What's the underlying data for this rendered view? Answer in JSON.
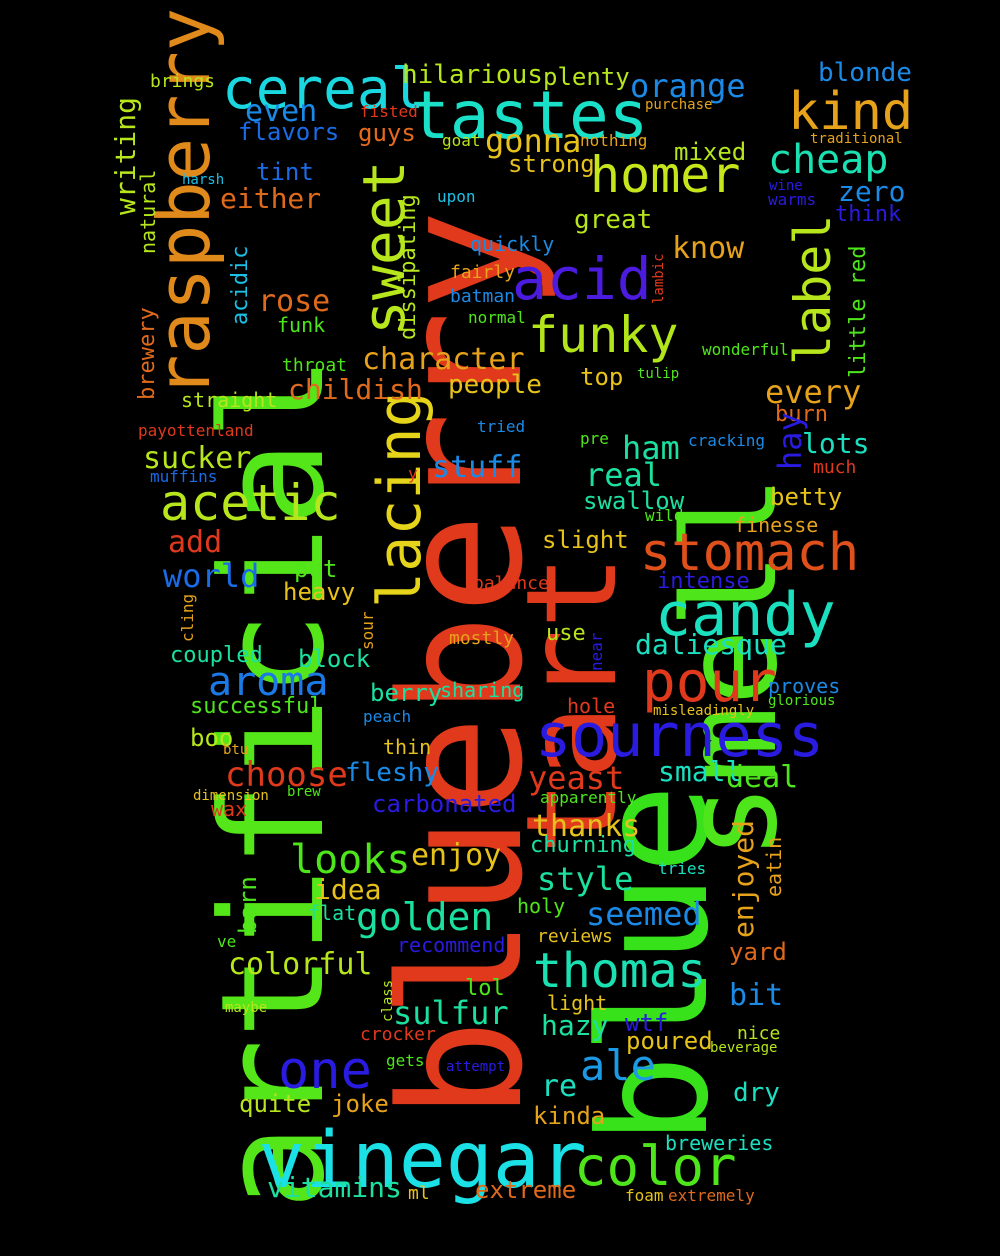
{
  "words": [
    {
      "text": "blueberry",
      "color": "#e0391c"
    },
    {
      "text": "artificial",
      "color": "#55e619"
    },
    {
      "text": "blue",
      "color": "#37e21b"
    },
    {
      "text": "smell",
      "color": "#4ee61b"
    },
    {
      "text": "tart",
      "color": "#e0391c"
    },
    {
      "text": "vinegar",
      "color": "#1be0e6"
    },
    {
      "text": "tastes",
      "color": "#1be0c8"
    },
    {
      "text": "cereal",
      "color": "#1bd8e0"
    },
    {
      "text": "raspberry",
      "color": "#e08a1b"
    },
    {
      "text": "lacing",
      "color": "#e6d41b"
    },
    {
      "text": "sweet",
      "color": "#b6e61b"
    },
    {
      "text": "acid",
      "color": "#4b1be0"
    },
    {
      "text": "sourness",
      "color": "#2a1be0"
    },
    {
      "text": "candy",
      "color": "#1be0c0"
    },
    {
      "text": "stomach",
      "color": "#e0501b"
    },
    {
      "text": "pour",
      "color": "#e0391c"
    },
    {
      "text": "funky",
      "color": "#b2e61b"
    },
    {
      "text": "homer",
      "color": "#c6e61b"
    },
    {
      "text": "kind",
      "color": "#e6a21b"
    },
    {
      "text": "label",
      "color": "#b6e61b"
    },
    {
      "text": "cheap",
      "color": "#1be0b2"
    },
    {
      "text": "acetic",
      "color": "#b6e61b"
    },
    {
      "text": "thomas",
      "color": "#1be0b2"
    },
    {
      "text": "color",
      "color": "#4ee61b"
    },
    {
      "text": "one",
      "color": "#2a1be0"
    },
    {
      "text": "aroma",
      "color": "#1b7ae6"
    },
    {
      "text": "ale",
      "color": "#1b9ae6"
    },
    {
      "text": "golden",
      "color": "#1be0a0"
    },
    {
      "text": "looks",
      "color": "#4ee61b"
    },
    {
      "text": "orange",
      "color": "#1b8ae6"
    },
    {
      "text": "blonde",
      "color": "#1b8ae6"
    },
    {
      "text": "hilarious",
      "color": "#b6e61b"
    },
    {
      "text": "plenty",
      "color": "#b6e61b"
    },
    {
      "text": "even",
      "color": "#1b8ae6"
    },
    {
      "text": "flavors",
      "color": "#1b6ae6"
    },
    {
      "text": "fisted",
      "color": "#e0391c"
    },
    {
      "text": "guys",
      "color": "#e66a1b"
    },
    {
      "text": "gonna",
      "color": "#e6c21b"
    },
    {
      "text": "nothing",
      "color": "#e6a21b"
    },
    {
      "text": "purchase",
      "color": "#e6a21b"
    },
    {
      "text": "traditional",
      "color": "#e6a21b"
    },
    {
      "text": "brings",
      "color": "#b6e61b"
    },
    {
      "text": "writing",
      "color": "#b6e61b"
    },
    {
      "text": "natural",
      "color": "#b6e61b"
    },
    {
      "text": "tint",
      "color": "#1b6ae6"
    },
    {
      "text": "harsh",
      "color": "#1bc0e6"
    },
    {
      "text": "either",
      "color": "#e06a1b"
    },
    {
      "text": "goat",
      "color": "#b6e61b"
    },
    {
      "text": "strong",
      "color": "#e6c21b"
    },
    {
      "text": "mixed",
      "color": "#b6e61b"
    },
    {
      "text": "upon",
      "color": "#1bc0e6"
    },
    {
      "text": "great",
      "color": "#b6e61b"
    },
    {
      "text": "know",
      "color": "#e6a21b"
    },
    {
      "text": "zero",
      "color": "#1b8ae6"
    },
    {
      "text": "wine",
      "color": "#2a1be0"
    },
    {
      "text": "warms",
      "color": "#2a1be0"
    },
    {
      "text": "think",
      "color": "#2a1be0"
    },
    {
      "text": "little red",
      "color": "#4ee61b"
    },
    {
      "text": "quickly",
      "color": "#1b8ae6"
    },
    {
      "text": "fairly",
      "color": "#e6a21b"
    },
    {
      "text": "lambic",
      "color": "#e0391c"
    },
    {
      "text": "dissipating",
      "color": "#b6e61b"
    },
    {
      "text": "acidic",
      "color": "#1bc0e6"
    },
    {
      "text": "rose",
      "color": "#e06a1b"
    },
    {
      "text": "funk",
      "color": "#4ee61b"
    },
    {
      "text": "batman",
      "color": "#1b8ae6"
    },
    {
      "text": "normal",
      "color": "#4ee61b"
    },
    {
      "text": "brewery",
      "color": "#e06a1b"
    },
    {
      "text": "throat",
      "color": "#4ee61b"
    },
    {
      "text": "character",
      "color": "#e6a21b"
    },
    {
      "text": "childish",
      "color": "#e06a1b"
    },
    {
      "text": "people",
      "color": "#e6c21b"
    },
    {
      "text": "top",
      "color": "#e6c21b"
    },
    {
      "text": "wonderful",
      "color": "#4ee61b"
    },
    {
      "text": "tulip",
      "color": "#4ee61b"
    },
    {
      "text": "every",
      "color": "#e6a21b"
    },
    {
      "text": "burn",
      "color": "#e06a1b"
    },
    {
      "text": "straight",
      "color": "#b6e61b"
    },
    {
      "text": "payottenland",
      "color": "#e0391c"
    },
    {
      "text": "tried",
      "color": "#1b8ae6"
    },
    {
      "text": "pre",
      "color": "#4ee61b"
    },
    {
      "text": "cracking",
      "color": "#1b8ae6"
    },
    {
      "text": "lots",
      "color": "#1be0c0"
    },
    {
      "text": "hay",
      "color": "#2a1be0"
    },
    {
      "text": "much",
      "color": "#e0391c"
    },
    {
      "text": "sucker",
      "color": "#b6e61b"
    },
    {
      "text": "muffins",
      "color": "#1b6ae6"
    },
    {
      "text": "y",
      "color": "#e0391c"
    },
    {
      "text": "stuff",
      "color": "#1b8ae6"
    },
    {
      "text": "ham",
      "color": "#1be0a0"
    },
    {
      "text": "real",
      "color": "#1be0a0"
    },
    {
      "text": "swallow",
      "color": "#1be0a0"
    },
    {
      "text": "betty",
      "color": "#e6c21b"
    },
    {
      "text": "wild",
      "color": "#4ee61b"
    },
    {
      "text": "finesse",
      "color": "#e6a21b"
    },
    {
      "text": "add",
      "color": "#e0391c"
    },
    {
      "text": "slight",
      "color": "#e6c21b"
    },
    {
      "text": "world",
      "color": "#1b6ae6"
    },
    {
      "text": "put",
      "color": "#4ee61b"
    },
    {
      "text": "intense",
      "color": "#2a1be0"
    },
    {
      "text": "heavy",
      "color": "#e6c21b"
    },
    {
      "text": "balance",
      "color": "#e0391c"
    },
    {
      "text": "cling",
      "color": "#e6a21b"
    },
    {
      "text": "sour",
      "color": "#e6a21b"
    },
    {
      "text": "mostly",
      "color": "#e6a21b"
    },
    {
      "text": "use",
      "color": "#b6e61b"
    },
    {
      "text": "near",
      "color": "#2a1be0"
    },
    {
      "text": "daliesque",
      "color": "#1be0c0"
    },
    {
      "text": "coupled",
      "color": "#1be0a0"
    },
    {
      "text": "block",
      "color": "#1be0a0"
    },
    {
      "text": "berry",
      "color": "#1be0a0"
    },
    {
      "text": "sharing",
      "color": "#1be0a0"
    },
    {
      "text": "proves",
      "color": "#1b8ae6"
    },
    {
      "text": "glorious",
      "color": "#4ee61b"
    },
    {
      "text": "successful",
      "color": "#4ee61b"
    },
    {
      "text": "hole",
      "color": "#e0391c"
    },
    {
      "text": "misleadingly",
      "color": "#e6c21b"
    },
    {
      "text": "peach",
      "color": "#1b8ae6"
    },
    {
      "text": "boo",
      "color": "#b6e61b"
    },
    {
      "text": "btu",
      "color": "#e6a21b"
    },
    {
      "text": "thin",
      "color": "#e6c21b"
    },
    {
      "text": "choose",
      "color": "#e0391c"
    },
    {
      "text": "fleshy",
      "color": "#1b8ae6"
    },
    {
      "text": "small",
      "color": "#1be0c0"
    },
    {
      "text": "deal",
      "color": "#4ee61b"
    },
    {
      "text": "yeast",
      "color": "#e0391c"
    },
    {
      "text": "dimension",
      "color": "#e6c21b"
    },
    {
      "text": "brew",
      "color": "#4ee61b"
    },
    {
      "text": "wax",
      "color": "#e0391c"
    },
    {
      "text": "carbonated",
      "color": "#2a1be0"
    },
    {
      "text": "apparently",
      "color": "#4ee61b"
    },
    {
      "text": "thanks",
      "color": "#e6c21b"
    },
    {
      "text": "churning",
      "color": "#1be0a0"
    },
    {
      "text": "enjoy",
      "color": "#e6c21b"
    },
    {
      "text": "enjoyed",
      "color": "#e6a21b"
    },
    {
      "text": "eatin",
      "color": "#e6a21b"
    },
    {
      "text": "tries",
      "color": "#1be0c0"
    },
    {
      "text": "style",
      "color": "#1be0a0"
    },
    {
      "text": "idea",
      "color": "#e6c21b"
    },
    {
      "text": "barn",
      "color": "#4ee61b"
    },
    {
      "text": "flat",
      "color": "#1be0a0"
    },
    {
      "text": "holy",
      "color": "#4ee61b"
    },
    {
      "text": "seemed",
      "color": "#1b8ae6"
    },
    {
      "text": "recommend",
      "color": "#2a1be0"
    },
    {
      "text": "ve",
      "color": "#4ee61b"
    },
    {
      "text": "reviews",
      "color": "#e6c21b"
    },
    {
      "text": "yard",
      "color": "#e06a1b"
    },
    {
      "text": "colorful",
      "color": "#b6e61b"
    },
    {
      "text": "lol",
      "color": "#4ee61b"
    },
    {
      "text": "bit",
      "color": "#1b8ae6"
    },
    {
      "text": "light",
      "color": "#e6c21b"
    },
    {
      "text": "sulfur",
      "color": "#1be0a0"
    },
    {
      "text": "maybe",
      "color": "#b6e61b"
    },
    {
      "text": "class",
      "color": "#b6e61b"
    },
    {
      "text": "crocker",
      "color": "#e0391c"
    },
    {
      "text": "hazy",
      "color": "#1be0a0"
    },
    {
      "text": "wtf",
      "color": "#2a1be0"
    },
    {
      "text": "nice",
      "color": "#b6e61b"
    },
    {
      "text": "beverage",
      "color": "#b6e61b"
    },
    {
      "text": "gets",
      "color": "#4ee61b"
    },
    {
      "text": "attempt",
      "color": "#2a1be0"
    },
    {
      "text": "poured",
      "color": "#e6c21b"
    },
    {
      "text": "re",
      "color": "#1be0c0"
    },
    {
      "text": "dry",
      "color": "#1be0c0"
    },
    {
      "text": "quite",
      "color": "#b6e61b"
    },
    {
      "text": "joke",
      "color": "#e6a21b"
    },
    {
      "text": "kinda",
      "color": "#e6a21b"
    },
    {
      "text": "breweries",
      "color": "#1be0c0"
    },
    {
      "text": "vitamins",
      "color": "#1be0a0"
    },
    {
      "text": "ml",
      "color": "#e6c21b"
    },
    {
      "text": "extreme",
      "color": "#e06a1b"
    },
    {
      "text": "foam",
      "color": "#e6c21b"
    },
    {
      "text": "extremely",
      "color": "#e06a1b"
    }
  ]
}
